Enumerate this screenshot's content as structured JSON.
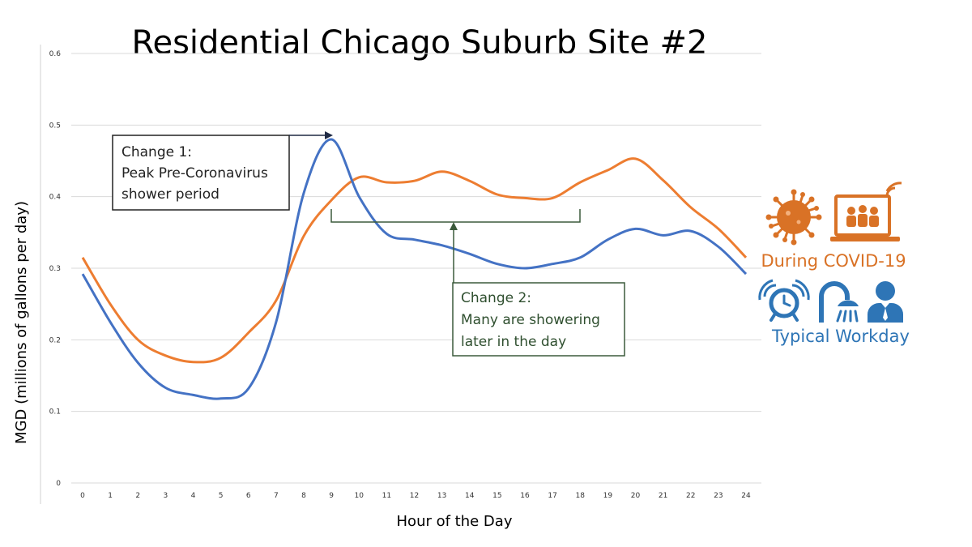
{
  "chart_data": {
    "type": "line",
    "title": "Residential Chicago Suburb Site #2",
    "xlabel": "Hour of the Day",
    "ylabel": "MGD (millions of gallons per day)",
    "x": [
      0,
      1,
      2,
      3,
      4,
      5,
      6,
      7,
      8,
      9,
      10,
      11,
      12,
      13,
      14,
      15,
      16,
      17,
      18,
      19,
      20,
      21,
      22,
      23,
      24
    ],
    "x_ticks": [
      "0",
      "1",
      "2",
      "3",
      "4",
      "5",
      "6",
      "7",
      "8",
      "9",
      "10",
      "11",
      "12",
      "13",
      "14",
      "15",
      "16",
      "17",
      "18",
      "19",
      "20",
      "21",
      "22",
      "23",
      "24"
    ],
    "y_ticks": [
      "0",
      "0.1",
      "0.2",
      "0.3",
      "0.4",
      "0.5",
      "0.6"
    ],
    "y_tick_values": [
      0,
      0.1,
      0.2,
      0.3,
      0.4,
      0.5,
      0.6
    ],
    "xlim": [
      0,
      24
    ],
    "ylim": [
      0,
      0.6
    ],
    "grid": true,
    "series": [
      {
        "name": "Typical Workday",
        "color": "#4472c4",
        "values": [
          0.292,
          0.225,
          0.168,
          0.133,
          0.123,
          0.118,
          0.132,
          0.225,
          0.405,
          0.48,
          0.4,
          0.348,
          0.34,
          0.332,
          0.32,
          0.306,
          0.3,
          0.306,
          0.315,
          0.34,
          0.355,
          0.346,
          0.352,
          0.33,
          0.292
        ]
      },
      {
        "name": "During COVID-19",
        "color": "#ed7d31",
        "values": [
          0.315,
          0.25,
          0.2,
          0.178,
          0.169,
          0.175,
          0.21,
          0.255,
          0.345,
          0.395,
          0.427,
          0.42,
          0.422,
          0.435,
          0.422,
          0.403,
          0.398,
          0.398,
          0.42,
          0.437,
          0.453,
          0.423,
          0.385,
          0.355,
          0.315
        ]
      }
    ],
    "annotations": {
      "change1": [
        "Change 1:",
        "Peak Pre-Coronavirus",
        "shower period"
      ],
      "change2": [
        "Change 2:",
        "Many are showering",
        "later in the day"
      ]
    }
  },
  "legend": {
    "covid_label": "During COVID-19",
    "covid_color": "#d97226",
    "work_label": "Typical Workday",
    "work_color": "#2e75b6",
    "covid_icons": [
      "virus-icon",
      "video-conference-laptop-icon"
    ],
    "work_icons": [
      "alarm-clock-icon",
      "shower-icon",
      "businessman-icon"
    ]
  }
}
